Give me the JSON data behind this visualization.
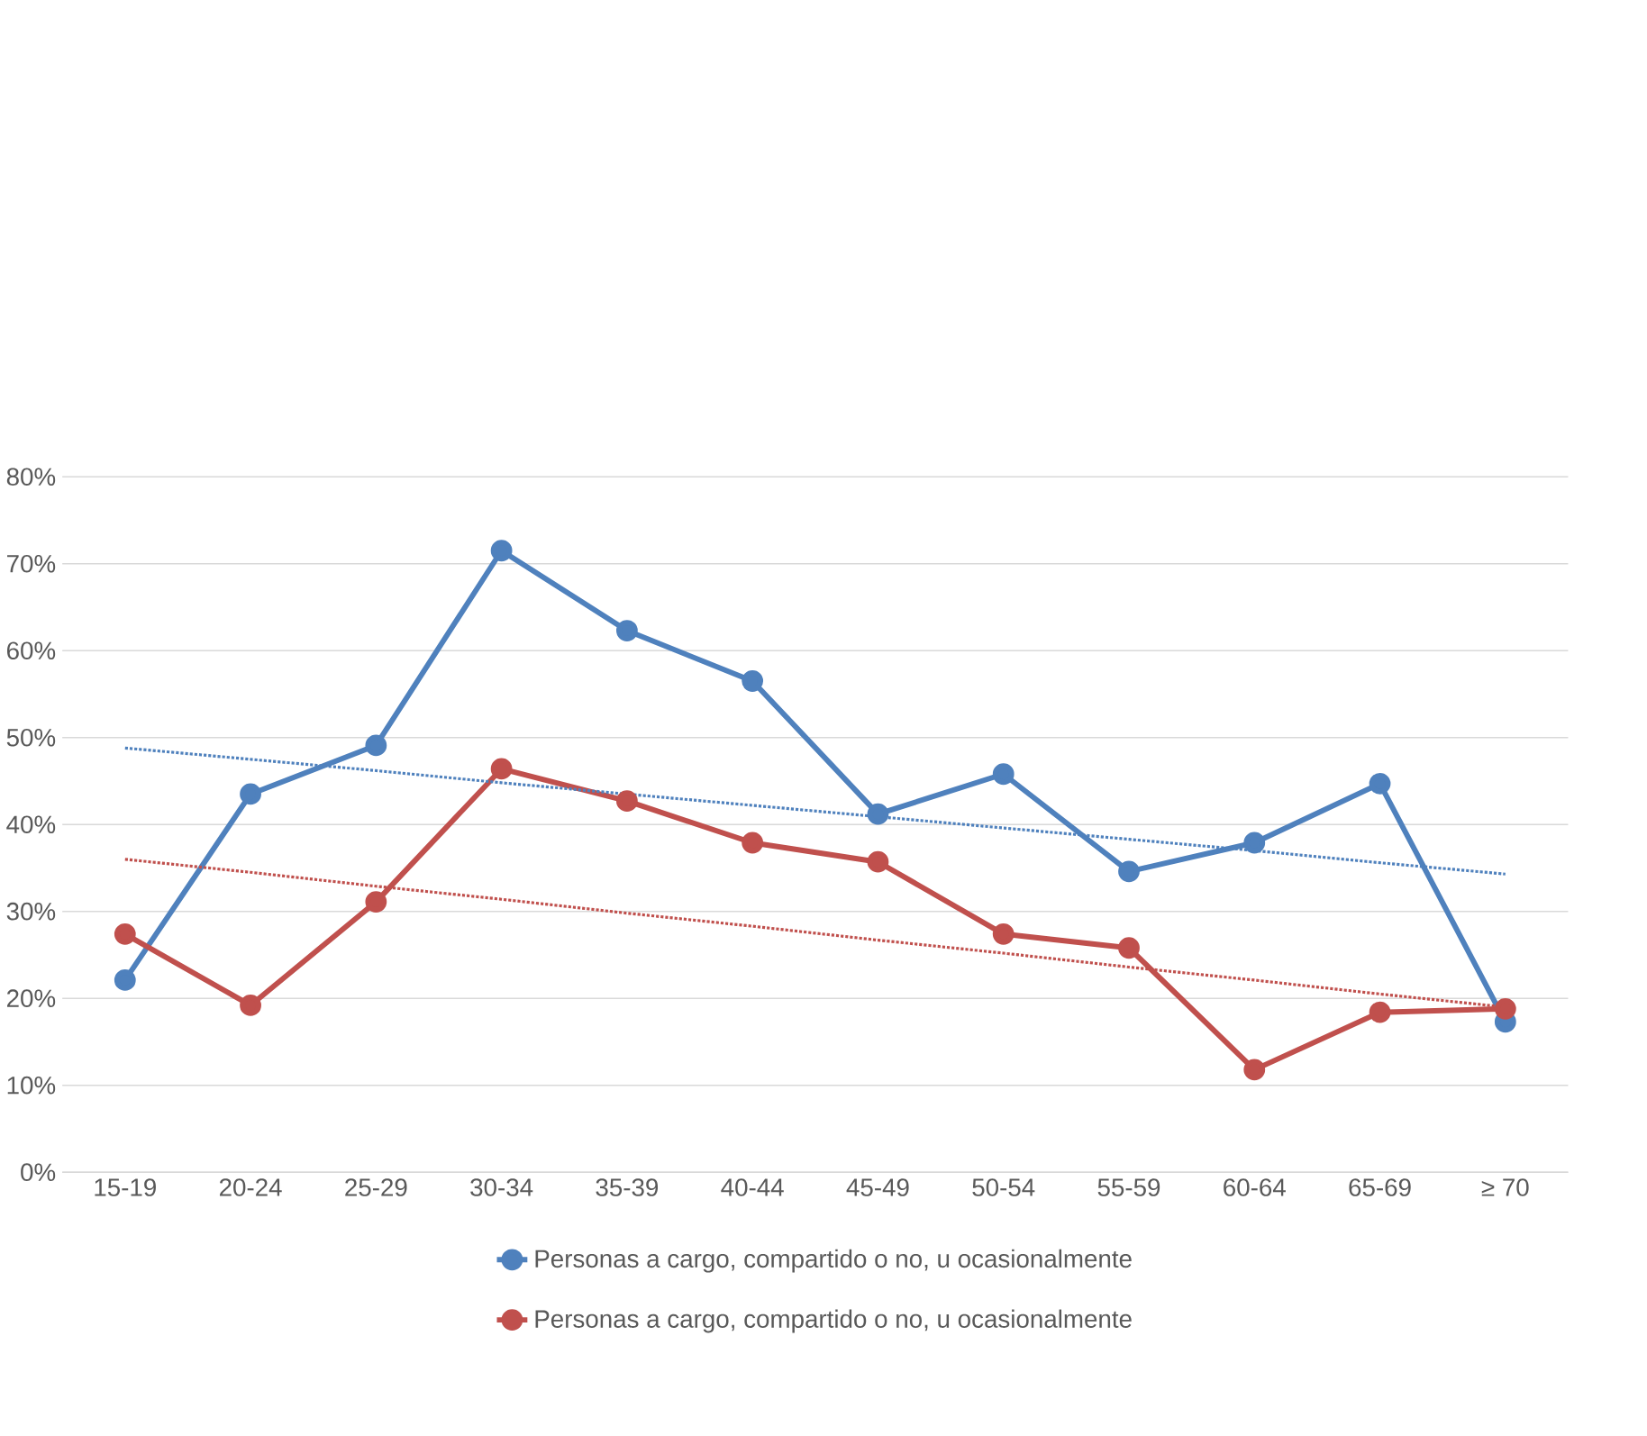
{
  "chart_data": {
    "type": "line",
    "categories": [
      "15-19",
      "20-24",
      "25-29",
      "30-34",
      "35-39",
      "40-44",
      "45-49",
      "50-54",
      "55-59",
      "60-64",
      "65-69",
      "≥ 70"
    ],
    "series": [
      {
        "name": "Personas a cargo, compartido o no, u ocasionalmente",
        "color": "#4f81bd",
        "marker": "circle",
        "line_style": "solid",
        "values": [
          22.1,
          43.5,
          49.1,
          71.5,
          62.3,
          56.5,
          41.2,
          45.8,
          34.6,
          37.9,
          44.7,
          17.3
        ]
      },
      {
        "name": "Personas a cargo, compartido o no, u ocasionalmente",
        "color": "#c0504d",
        "marker": "circle",
        "line_style": "solid",
        "values": [
          27.4,
          19.2,
          31.1,
          46.4,
          42.7,
          37.9,
          35.7,
          27.4,
          25.8,
          11.8,
          18.4,
          18.8
        ]
      },
      {
        "type": "line",
        "color": "#4f81bd",
        "marker": "none",
        "line_style": "dotted",
        "values": [
          48.8,
          47.5,
          46.2,
          44.8,
          43.5,
          42.2,
          40.9,
          39.6,
          38.3,
          37.0,
          35.6,
          34.3
        ]
      },
      {
        "type": "line",
        "color": "#c0504d",
        "marker": "none",
        "line_style": "dotted",
        "values": [
          36.0,
          34.5,
          32.9,
          31.4,
          29.8,
          28.3,
          26.7,
          25.2,
          23.6,
          22.1,
          20.5,
          19.0
        ]
      }
    ],
    "ylim": [
      0,
      80
    ],
    "yticks": [
      {
        "value": 0,
        "label": "0%"
      },
      {
        "value": 10,
        "label": "10%"
      },
      {
        "value": 20,
        "label": "20%"
      },
      {
        "value": 30,
        "label": "30%"
      },
      {
        "value": 40,
        "label": "40%"
      },
      {
        "value": 50,
        "label": "50%"
      },
      {
        "value": 60,
        "label": "60%"
      },
      {
        "value": 70,
        "label": "70%"
      },
      {
        "value": 80,
        "label": "80%"
      }
    ],
    "grid": "y",
    "legend": "bottom"
  }
}
